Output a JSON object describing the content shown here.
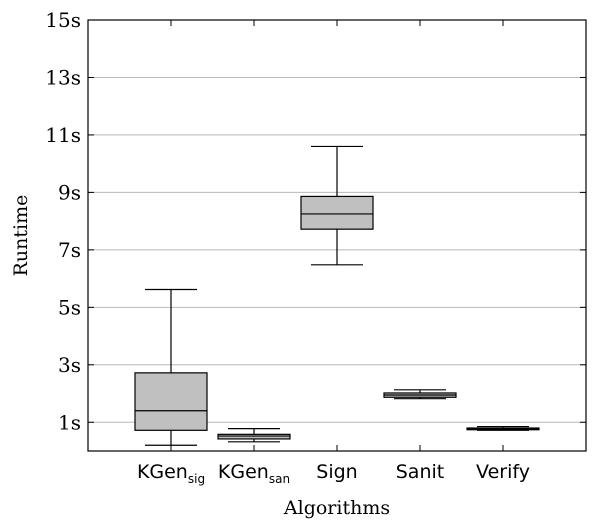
{
  "chart_data": {
    "type": "box",
    "xlabel": "Algorithms",
    "ylabel": "Runtime",
    "ylim": [
      0,
      15
    ],
    "yticks": [
      1,
      3,
      5,
      7,
      9,
      11,
      13,
      15
    ],
    "ytick_suffix": "s",
    "grid": "horizontal",
    "box_color": "#c0c0c0",
    "categories": [
      {
        "label": "KGen",
        "sub": "sig",
        "whisker_low": 0.2,
        "q1": 0.72,
        "median": 1.4,
        "q3": 2.72,
        "whisker_high": 5.62
      },
      {
        "label": "KGen",
        "sub": "san",
        "whisker_low": 0.32,
        "q1": 0.42,
        "median": 0.52,
        "q3": 0.58,
        "whisker_high": 0.78
      },
      {
        "label": "Sign",
        "sub": "",
        "whisker_low": 6.48,
        "q1": 7.72,
        "median": 8.25,
        "q3": 8.86,
        "whisker_high": 10.6
      },
      {
        "label": "Sanit",
        "sub": "",
        "whisker_low": 1.82,
        "q1": 1.87,
        "median": 1.95,
        "q3": 2.02,
        "whisker_high": 2.13
      },
      {
        "label": "Verify",
        "sub": "",
        "whisker_low": 0.72,
        "q1": 0.74,
        "median": 0.77,
        "q3": 0.8,
        "whisker_high": 0.85
      }
    ]
  }
}
